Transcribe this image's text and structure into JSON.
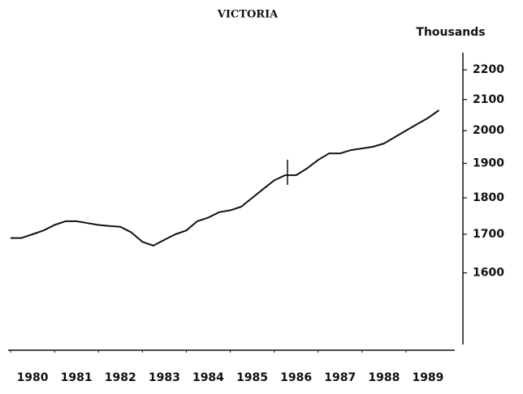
{
  "chart_data": {
    "type": "line",
    "title": "VICTORIA",
    "y_axis_label": "Thousands",
    "x": [
      1980,
      1980.25,
      1980.5,
      1980.75,
      1981,
      1981.25,
      1981.5,
      1981.75,
      1982,
      1982.25,
      1982.5,
      1982.75,
      1983,
      1983.25,
      1983.5,
      1983.75,
      1984,
      1984.25,
      1984.5,
      1984.75,
      1985,
      1985.25,
      1985.5,
      1985.75,
      1986,
      1986.25,
      1986.5,
      1986.75,
      1987,
      1987.25,
      1987.5,
      1987.75,
      1988,
      1988.25,
      1988.5,
      1988.75,
      1989,
      1989.25,
      1989.5,
      1989.75
    ],
    "series": [
      {
        "color": "#111111",
        "values": [
          1690,
          1690,
          1700,
          1710,
          1725,
          1735,
          1735,
          1730,
          1725,
          1722,
          1720,
          1705,
          1680,
          1670,
          1685,
          1700,
          1710,
          1735,
          1745,
          1760,
          1765,
          1775,
          1800,
          1825,
          1850,
          1865,
          1865,
          1885,
          1910,
          1930,
          1930,
          1940,
          1945,
          1950,
          1960,
          1980,
          2000,
          2020,
          2040,
          2065
        ]
      }
    ],
    "xlim": [
      1980,
      1990
    ],
    "xticks": [
      {
        "value": 1980.5,
        "label": "1980"
      },
      {
        "value": 1981.5,
        "label": "1981"
      },
      {
        "value": 1982.5,
        "label": "1982"
      },
      {
        "value": 1983.5,
        "label": "1983"
      },
      {
        "value": 1984.5,
        "label": "1984"
      },
      {
        "value": 1985.5,
        "label": "1985"
      },
      {
        "value": 1986.5,
        "label": "1986"
      },
      {
        "value": 1987.5,
        "label": "1987"
      },
      {
        "value": 1988.5,
        "label": "1988"
      },
      {
        "value": 1989.5,
        "label": "1989"
      }
    ],
    "ylim": [
      1430,
      2260
    ],
    "yticks": [
      1600,
      1700,
      1800,
      1900,
      2000,
      2100,
      2200
    ],
    "log_scale": true,
    "y_axis_side": "right",
    "grid": false
  }
}
